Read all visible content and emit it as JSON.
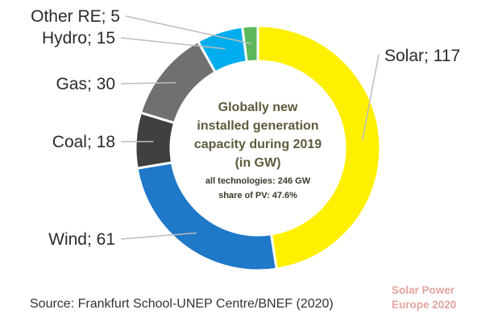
{
  "chart_data": {
    "type": "pie",
    "donut": true,
    "slices": [
      {
        "label": "Solar",
        "value": 117,
        "text": "Solar; 117",
        "color": "#fff000"
      },
      {
        "label": "Wind",
        "value": 61,
        "text": "Wind; 61",
        "color": "#1f78c8"
      },
      {
        "label": "Coal",
        "value": 18,
        "text": "Coal; 18",
        "color": "#404040"
      },
      {
        "label": "Gas",
        "value": 30,
        "text": "Gas; 30",
        "color": "#707070"
      },
      {
        "label": "Hydro",
        "value": 15,
        "text": "Hydro; 15",
        "color": "#00aeef"
      },
      {
        "label": "Other RE",
        "value": 5,
        "text": "Other RE; 5",
        "color": "#5cb85c"
      }
    ],
    "center_text": {
      "title_lines": [
        "Globally new",
        "installed generation",
        "capacity during 2019",
        "(in GW)"
      ],
      "subtitle_lines": [
        "all technologies: 246 GW",
        "share of PV: 47.6%"
      ]
    },
    "legend": "none"
  },
  "source": "Source: Frankfurt School-UNEP Centre/BNEF (2020)",
  "brand": {
    "line1": "Solar Power",
    "line2": "Europe 2020"
  }
}
